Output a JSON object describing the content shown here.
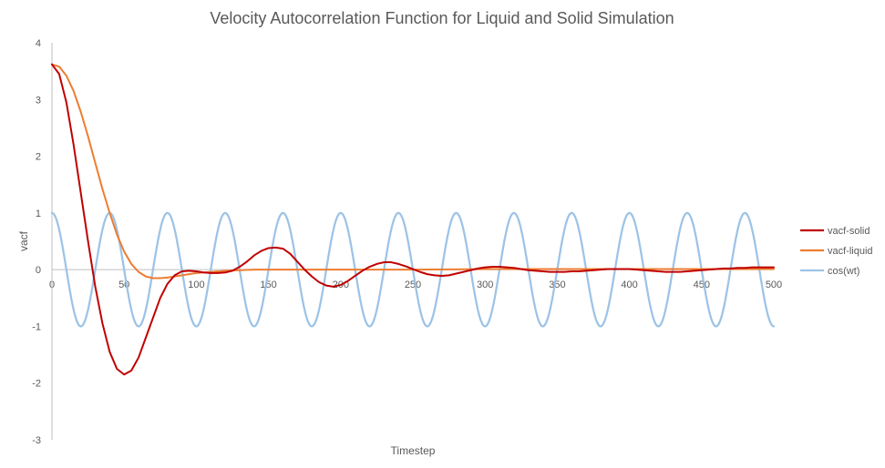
{
  "chart_data": {
    "type": "line",
    "title": "Velocity Autocorrelation Function for Liquid and Solid Simulation",
    "xlabel": "Timestep",
    "ylabel": "vacf",
    "xlim": [
      0,
      500
    ],
    "ylim": [
      -3,
      4
    ],
    "x_ticks": [
      0,
      50,
      100,
      150,
      200,
      250,
      300,
      350,
      400,
      450,
      500
    ],
    "y_ticks": [
      -3,
      -2,
      -1,
      0,
      1,
      2,
      3,
      4
    ],
    "grid": false,
    "legend_position": "right",
    "series": [
      {
        "name": "vacf-solid",
        "color": "#c00000",
        "points": [
          [
            0,
            3.62
          ],
          [
            5,
            3.45
          ],
          [
            10,
            2.95
          ],
          [
            15,
            2.2
          ],
          [
            20,
            1.35
          ],
          [
            25,
            0.5
          ],
          [
            30,
            -0.3
          ],
          [
            35,
            -0.95
          ],
          [
            40,
            -1.45
          ],
          [
            45,
            -1.75
          ],
          [
            50,
            -1.85
          ],
          [
            55,
            -1.78
          ],
          [
            60,
            -1.55
          ],
          [
            65,
            -1.2
          ],
          [
            70,
            -0.85
          ],
          [
            75,
            -0.5
          ],
          [
            80,
            -0.25
          ],
          [
            85,
            -0.1
          ],
          [
            90,
            -0.03
          ],
          [
            95,
            -0.02
          ],
          [
            100,
            -0.03
          ],
          [
            105,
            -0.05
          ],
          [
            110,
            -0.06
          ],
          [
            115,
            -0.06
          ],
          [
            120,
            -0.05
          ],
          [
            125,
            -0.02
          ],
          [
            130,
            0.05
          ],
          [
            135,
            0.14
          ],
          [
            140,
            0.25
          ],
          [
            145,
            0.33
          ],
          [
            150,
            0.38
          ],
          [
            155,
            0.39
          ],
          [
            160,
            0.37
          ],
          [
            165,
            0.28
          ],
          [
            170,
            0.14
          ],
          [
            175,
            0.0
          ],
          [
            180,
            -0.12
          ],
          [
            185,
            -0.22
          ],
          [
            190,
            -0.28
          ],
          [
            195,
            -0.3
          ],
          [
            200,
            -0.27
          ],
          [
            205,
            -0.2
          ],
          [
            210,
            -0.11
          ],
          [
            215,
            -0.02
          ],
          [
            220,
            0.05
          ],
          [
            225,
            0.1
          ],
          [
            230,
            0.13
          ],
          [
            235,
            0.13
          ],
          [
            240,
            0.1
          ],
          [
            245,
            0.06
          ],
          [
            250,
            0.01
          ],
          [
            255,
            -0.04
          ],
          [
            260,
            -0.08
          ],
          [
            265,
            -0.1
          ],
          [
            270,
            -0.11
          ],
          [
            275,
            -0.1
          ],
          [
            280,
            -0.07
          ],
          [
            285,
            -0.04
          ],
          [
            290,
            -0.01
          ],
          [
            295,
            0.02
          ],
          [
            300,
            0.04
          ],
          [
            305,
            0.05
          ],
          [
            310,
            0.05
          ],
          [
            315,
            0.04
          ],
          [
            320,
            0.03
          ],
          [
            325,
            0.01
          ],
          [
            330,
            -0.01
          ],
          [
            335,
            -0.02
          ],
          [
            340,
            -0.03
          ],
          [
            345,
            -0.04
          ],
          [
            350,
            -0.04
          ],
          [
            355,
            -0.04
          ],
          [
            360,
            -0.03
          ],
          [
            365,
            -0.03
          ],
          [
            370,
            -0.02
          ],
          [
            375,
            -0.01
          ],
          [
            380,
            0.0
          ],
          [
            385,
            0.01
          ],
          [
            390,
            0.01
          ],
          [
            395,
            0.01
          ],
          [
            400,
            0.01
          ],
          [
            405,
            0.0
          ],
          [
            410,
            -0.01
          ],
          [
            415,
            -0.02
          ],
          [
            420,
            -0.03
          ],
          [
            425,
            -0.04
          ],
          [
            430,
            -0.04
          ],
          [
            435,
            -0.04
          ],
          [
            440,
            -0.03
          ],
          [
            445,
            -0.02
          ],
          [
            450,
            -0.01
          ],
          [
            455,
            0.0
          ],
          [
            460,
            0.01
          ],
          [
            465,
            0.02
          ],
          [
            470,
            0.02
          ],
          [
            475,
            0.03
          ],
          [
            480,
            0.03
          ],
          [
            485,
            0.04
          ],
          [
            490,
            0.04
          ],
          [
            495,
            0.04
          ],
          [
            500,
            0.04
          ]
        ]
      },
      {
        "name": "vacf-liquid",
        "color": "#ed7d31",
        "points": [
          [
            0,
            3.62
          ],
          [
            5,
            3.58
          ],
          [
            10,
            3.42
          ],
          [
            15,
            3.15
          ],
          [
            20,
            2.78
          ],
          [
            25,
            2.35
          ],
          [
            30,
            1.88
          ],
          [
            35,
            1.42
          ],
          [
            40,
            1.0
          ],
          [
            45,
            0.62
          ],
          [
            50,
            0.32
          ],
          [
            55,
            0.1
          ],
          [
            60,
            -0.04
          ],
          [
            65,
            -0.12
          ],
          [
            70,
            -0.15
          ],
          [
            75,
            -0.15
          ],
          [
            80,
            -0.14
          ],
          [
            85,
            -0.12
          ],
          [
            90,
            -0.1
          ],
          [
            95,
            -0.08
          ],
          [
            100,
            -0.06
          ],
          [
            105,
            -0.05
          ],
          [
            110,
            -0.04
          ],
          [
            120,
            -0.02
          ],
          [
            130,
            -0.01
          ],
          [
            140,
            0.0
          ],
          [
            150,
            0.0
          ],
          [
            175,
            0.0
          ],
          [
            200,
            0.0
          ],
          [
            250,
            0.0
          ],
          [
            300,
            0.01
          ],
          [
            350,
            0.01
          ],
          [
            400,
            0.01
          ],
          [
            450,
            0.01
          ],
          [
            500,
            0.01
          ]
        ]
      },
      {
        "name": "cos(wt)",
        "color": "#9dc3e6",
        "function": "cos",
        "amplitude": 1,
        "period": 40
      }
    ]
  }
}
